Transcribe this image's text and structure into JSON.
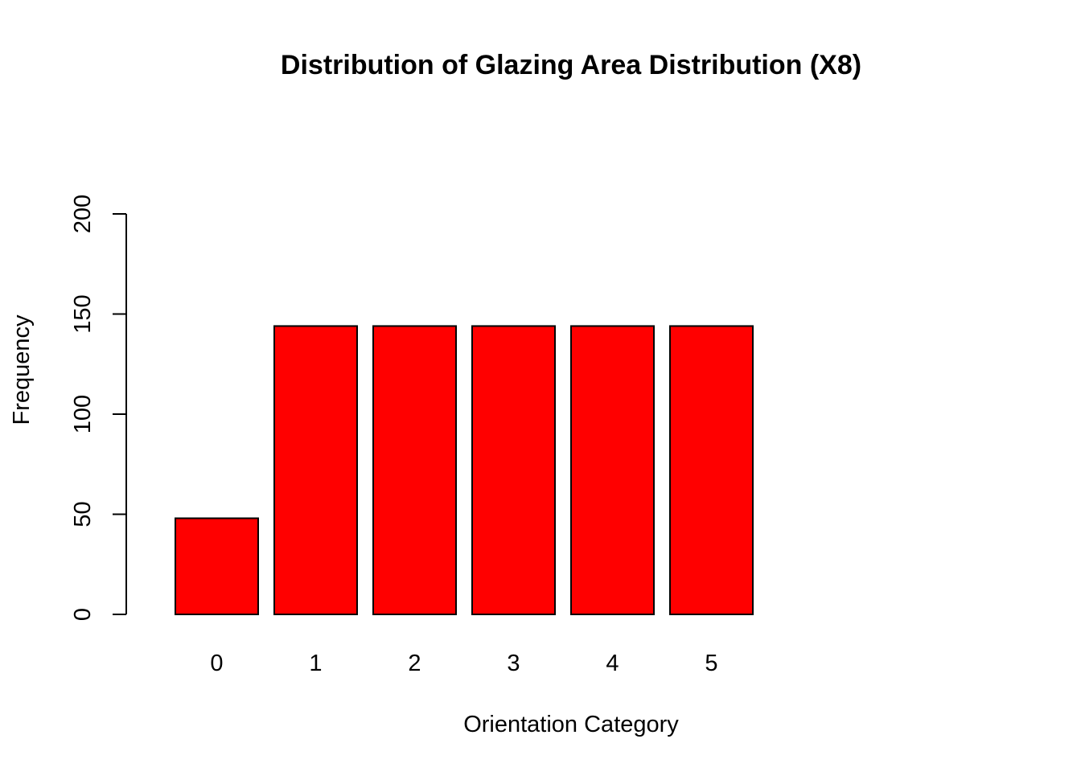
{
  "chart_data": {
    "type": "bar",
    "title": "Distribution of Glazing Area Distribution (X8)",
    "xlabel": "Orientation Category",
    "ylabel": "Frequency",
    "categories": [
      "0",
      "1",
      "2",
      "3",
      "4",
      "5"
    ],
    "values": [
      48,
      144,
      144,
      144,
      144,
      144
    ],
    "ylim": [
      0,
      200
    ],
    "yticks": [
      "0",
      "50",
      "100",
      "150",
      "200"
    ],
    "bar_color": "#ff0000",
    "bar_border_color": "#000000",
    "grid": false,
    "legend": "none"
  }
}
